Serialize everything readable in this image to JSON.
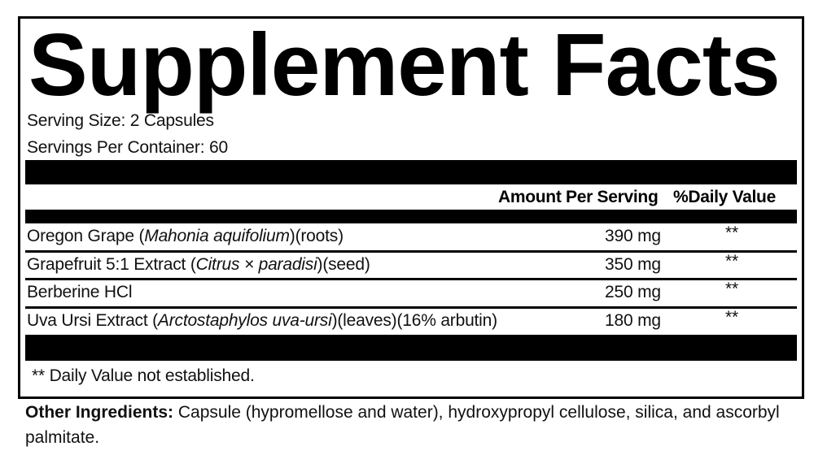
{
  "title": "Supplement Facts",
  "serving_size": "Serving Size: 2 Capsules",
  "servings_per_container": "Servings Per Container: 60",
  "header": {
    "amount": "Amount Per Serving",
    "daily_value": "%Daily Value"
  },
  "rows": [
    {
      "name": "Oregon Grape (",
      "latin": "Mahonia aquifolium",
      "suffix": ")(roots)",
      "amount": "390 mg",
      "dv": "**"
    },
    {
      "name": "Grapefruit 5:1 Extract (",
      "latin": "Citrus × paradisi",
      "suffix": ")(seed)",
      "amount": "350 mg",
      "dv": "**"
    },
    {
      "name": "Berberine HCl",
      "latin": "",
      "suffix": "",
      "amount": "250 mg",
      "dv": "**"
    },
    {
      "name": "Uva Ursi Extract (",
      "latin": "Arctostaphylos uva-ursi",
      "suffix": ")(leaves)(16% arbutin)",
      "amount": "180 mg",
      "dv": "**"
    }
  ],
  "footnote": "** Daily Value not established.",
  "other_ingredients": {
    "label": "Other Ingredients:",
    "text": " Capsule (hypromellose and water), hydroxypropyl cellulose, silica, and ascorbyl palmitate."
  }
}
